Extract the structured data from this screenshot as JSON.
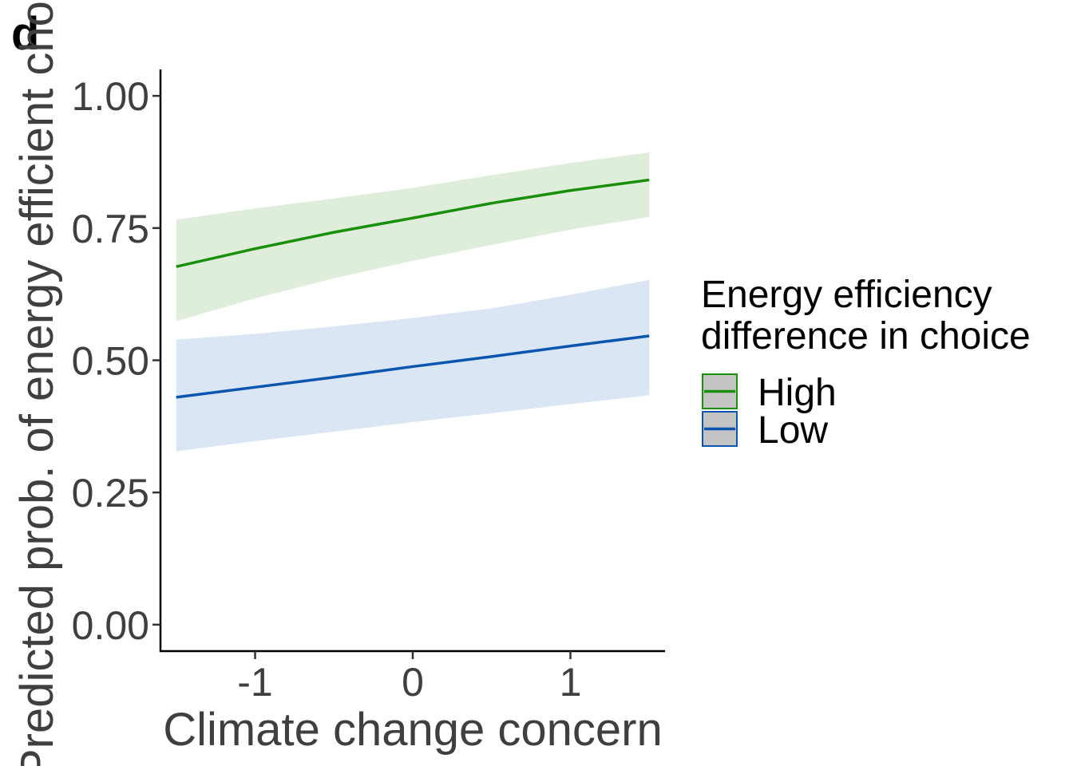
{
  "chart_data": {
    "type": "line",
    "panel_label": "d",
    "title": "",
    "xlabel": "Climate change concern",
    "ylabel": "Predicted prob. of energy efficient choice",
    "xlim": [
      -1.6,
      1.6
    ],
    "ylim": [
      -0.05,
      1.05
    ],
    "x_ticks": [
      -1,
      0,
      1
    ],
    "x_tick_labels": [
      "-1",
      "0",
      "1"
    ],
    "y_ticks": [
      0,
      0.25,
      0.5,
      0.75,
      1.0
    ],
    "y_tick_labels": [
      "0.00",
      "0.25",
      "0.50",
      "0.75",
      "1.00"
    ],
    "grid": false,
    "legend": {
      "title_lines": [
        "Energy efficiency",
        "difference in choice"
      ],
      "position": "right"
    },
    "series": [
      {
        "name": "High",
        "color": "#1a8f0a",
        "fill": "#dfeedb",
        "x": [
          -1.5,
          -1.0,
          -0.5,
          0.0,
          0.5,
          1.0,
          1.5
        ],
        "y": [
          0.677,
          0.711,
          0.742,
          0.769,
          0.797,
          0.821,
          0.841
        ],
        "lower": [
          0.574,
          0.617,
          0.655,
          0.688,
          0.718,
          0.747,
          0.771
        ],
        "upper": [
          0.766,
          0.787,
          0.806,
          0.826,
          0.85,
          0.873,
          0.893
        ]
      },
      {
        "name": "Low",
        "color": "#0a55b0",
        "fill": "#dae6f4",
        "x": [
          -1.5,
          -1.0,
          -0.5,
          0.0,
          0.5,
          1.0,
          1.5
        ],
        "y": [
          0.43,
          0.449,
          0.468,
          0.488,
          0.507,
          0.527,
          0.546
        ],
        "lower": [
          0.328,
          0.347,
          0.365,
          0.383,
          0.4,
          0.417,
          0.434
        ],
        "upper": [
          0.539,
          0.55,
          0.564,
          0.58,
          0.598,
          0.624,
          0.652
        ]
      }
    ]
  }
}
